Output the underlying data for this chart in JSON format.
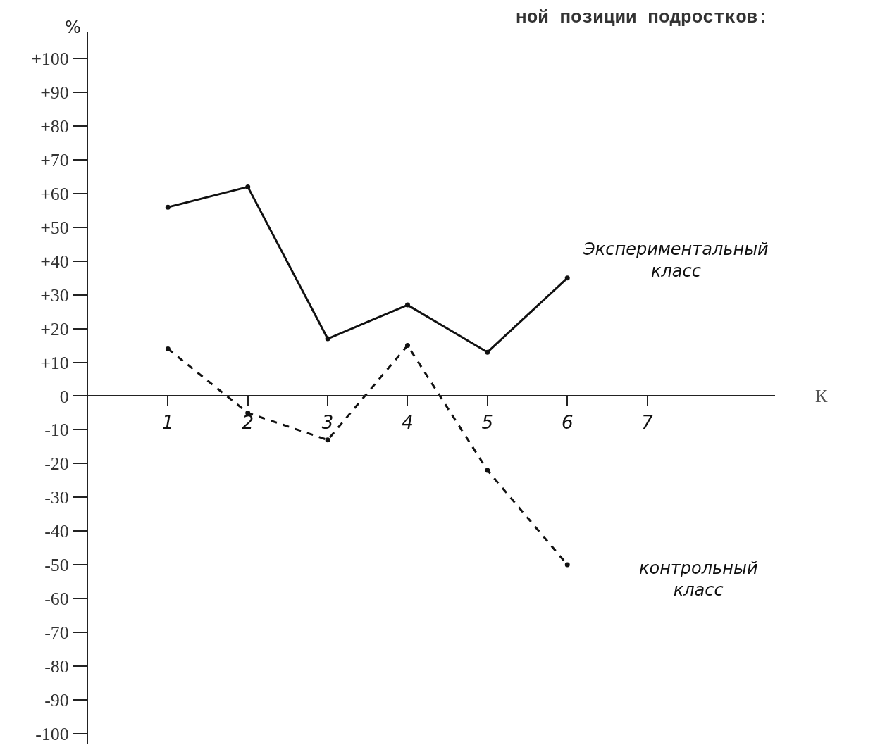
{
  "chart_data": {
    "type": "line",
    "title": "ной позиции подростков:",
    "xlabel": "К",
    "ylabel": "%",
    "x": [
      1,
      2,
      3,
      4,
      5,
      6
    ],
    "xlim": [
      0,
      8.6
    ],
    "xticks": [
      1,
      2,
      3,
      4,
      5,
      6,
      7
    ],
    "ylim": [
      -103,
      108
    ],
    "yticks": [
      {
        "value": 100,
        "label": "+100"
      },
      {
        "value": 90,
        "label": "+90"
      },
      {
        "value": 80,
        "label": "+80"
      },
      {
        "value": 70,
        "label": "+70"
      },
      {
        "value": 60,
        "label": "+60"
      },
      {
        "value": 50,
        "label": "+50"
      },
      {
        "value": 40,
        "label": "+40"
      },
      {
        "value": 30,
        "label": "+30"
      },
      {
        "value": 20,
        "label": "+20"
      },
      {
        "value": 10,
        "label": "+10"
      },
      0,
      {
        "value": -10,
        "label": "-10"
      },
      {
        "value": -20,
        "label": "-20"
      },
      {
        "value": -30,
        "label": "-30"
      },
      {
        "value": -40,
        "label": "-40"
      },
      {
        "value": -50,
        "label": "-50"
      },
      {
        "value": -60,
        "label": "-60"
      },
      {
        "value": -70,
        "label": "-70"
      },
      {
        "value": -80,
        "label": "-80"
      },
      {
        "value": -90,
        "label": "-90"
      },
      {
        "value": -100,
        "label": "-100"
      }
    ],
    "series": [
      {
        "name": "Экспериментальный класс",
        "color": "#111111",
        "line_style": "solid",
        "values": [
          56,
          62,
          17,
          27,
          13,
          35
        ]
      },
      {
        "name": "контрольный класс",
        "color": "#111111",
        "line_style": "dashed",
        "values": [
          14,
          -5,
          -13,
          15,
          -22,
          -50
        ]
      }
    ],
    "marker": "circle",
    "grid": false,
    "legend": false
  }
}
